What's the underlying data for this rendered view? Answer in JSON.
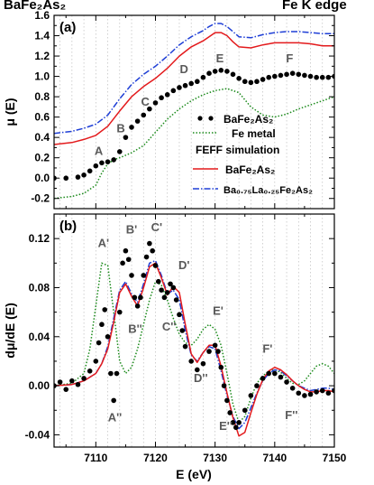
{
  "header": {
    "left_title": "BaFe₂As₂",
    "right_title": "Fe K edge"
  },
  "chart_data": [
    {
      "type": "line",
      "panel_label": "(a)",
      "xlabel": "",
      "ylabel": "μ (E)",
      "xlim": [
        7103,
        7150
      ],
      "ylim": [
        -0.3,
        1.6
      ],
      "xticks": [
        7110,
        7120,
        7130,
        7140,
        7150
      ],
      "yticks": [
        -0.2,
        0.0,
        0.2,
        0.4,
        0.6,
        0.8,
        1.0,
        1.2,
        1.4,
        1.6
      ],
      "ytick_labels": [
        "-0.2",
        "0.0",
        "0.2",
        "0.4",
        "0.6",
        "0.8",
        "1.0",
        "1.2",
        "1.4",
        "1.6"
      ],
      "grid": "vertical dotted",
      "annotations": [
        {
          "text": "A",
          "x": 7110.5,
          "y": 0.23
        },
        {
          "text": "B",
          "x": 7114.2,
          "y": 0.45
        },
        {
          "text": "C",
          "x": 7118.3,
          "y": 0.71
        },
        {
          "text": "D",
          "x": 7124.8,
          "y": 1.03
        },
        {
          "text": "E",
          "x": 7130.8,
          "y": 1.14
        },
        {
          "text": "F",
          "x": 7142.5,
          "y": 1.14
        }
      ],
      "legend": {
        "placement": "lower-right",
        "entries": [
          {
            "label": "BaFe₂As₂",
            "style": "dots",
            "color": "#000000"
          },
          {
            "label": "Fe metal",
            "style": "dotted",
            "color": "#1a8a1a"
          },
          {
            "label": "FEFF simulation",
            "style": "heading",
            "color": "#000000"
          },
          {
            "label": "BaFe₂As₂",
            "style": "solid",
            "color": "#e31a1c"
          },
          {
            "label": "Ba₀.₇₅La₀.₂₅Fe₂As₂",
            "style": "dashdot",
            "color": "#1f3fd6"
          }
        ]
      },
      "series": [
        {
          "name": "Ba0.75La0.25Fe2As2",
          "color": "#1f3fd6",
          "style": "dashdot",
          "x": [
            7103,
            7106,
            7108,
            7110,
            7112,
            7114,
            7116,
            7118,
            7120,
            7122,
            7124,
            7126,
            7128,
            7129,
            7130,
            7131,
            7132,
            7133,
            7134,
            7136,
            7138,
            7140,
            7142,
            7144,
            7146,
            7148,
            7150
          ],
          "y": [
            0.44,
            0.46,
            0.49,
            0.53,
            0.62,
            0.78,
            0.92,
            1.02,
            1.1,
            1.2,
            1.31,
            1.39,
            1.45,
            1.49,
            1.52,
            1.52,
            1.49,
            1.44,
            1.39,
            1.38,
            1.41,
            1.43,
            1.44,
            1.44,
            1.43,
            1.42,
            1.42
          ]
        },
        {
          "name": "BaFe2As2 (FEFF)",
          "color": "#e31a1c",
          "style": "solid",
          "x": [
            7103,
            7106,
            7108,
            7110,
            7112,
            7114,
            7116,
            7118,
            7120,
            7122,
            7124,
            7126,
            7128,
            7129,
            7130,
            7131,
            7132,
            7133,
            7134,
            7136,
            7138,
            7140,
            7142,
            7144,
            7146,
            7148,
            7150
          ],
          "y": [
            0.33,
            0.35,
            0.38,
            0.42,
            0.51,
            0.66,
            0.8,
            0.9,
            0.98,
            1.08,
            1.2,
            1.29,
            1.35,
            1.39,
            1.43,
            1.43,
            1.4,
            1.34,
            1.29,
            1.28,
            1.31,
            1.33,
            1.33,
            1.33,
            1.32,
            1.3,
            1.3
          ]
        },
        {
          "name": "Fe metal",
          "color": "#1a8a1a",
          "style": "dotted",
          "x": [
            7103,
            7106,
            7108,
            7110,
            7111,
            7112,
            7113,
            7114,
            7116,
            7118,
            7120,
            7122,
            7124,
            7126,
            7128,
            7130,
            7132,
            7134,
            7136,
            7138,
            7140,
            7142,
            7144,
            7146,
            7148,
            7150
          ],
          "y": [
            -0.2,
            -0.18,
            -0.15,
            -0.07,
            0.05,
            0.14,
            0.18,
            0.2,
            0.25,
            0.32,
            0.45,
            0.58,
            0.68,
            0.76,
            0.82,
            0.86,
            0.88,
            0.84,
            0.7,
            0.62,
            0.6,
            0.63,
            0.68,
            0.72,
            0.76,
            0.8
          ]
        },
        {
          "name": "BaFe2As2",
          "color": "#000000",
          "style": "dots",
          "x": [
            7103,
            7105,
            7107,
            7108,
            7109,
            7110,
            7111,
            7112,
            7113,
            7114,
            7115,
            7116,
            7117,
            7118,
            7119,
            7120,
            7121,
            7122,
            7123,
            7124,
            7125,
            7126,
            7127,
            7128,
            7129,
            7130,
            7131,
            7132,
            7133,
            7134,
            7135,
            7136,
            7137,
            7138,
            7139,
            7140,
            7141,
            7142,
            7143,
            7144,
            7145,
            7146,
            7147,
            7148,
            7149,
            7150
          ],
          "y": [
            0.0,
            0.0,
            0.01,
            0.03,
            0.07,
            0.12,
            0.15,
            0.16,
            0.18,
            0.26,
            0.4,
            0.5,
            0.56,
            0.62,
            0.68,
            0.74,
            0.79,
            0.82,
            0.86,
            0.89,
            0.91,
            0.93,
            0.95,
            0.99,
            1.03,
            1.05,
            1.06,
            1.05,
            1.02,
            0.98,
            0.95,
            0.94,
            0.95,
            0.97,
            0.99,
            1.0,
            1.01,
            1.02,
            1.03,
            1.02,
            1.01,
            1.0,
            0.99,
            0.99,
            0.99,
            1.0
          ]
        }
      ]
    },
    {
      "type": "line",
      "panel_label": "(b)",
      "xlabel": "E (eV)",
      "ylabel": "dμ/dE (E)",
      "xlim": [
        7103,
        7150
      ],
      "ylim": [
        -0.05,
        0.14
      ],
      "xticks": [
        7110,
        7120,
        7130,
        7140,
        7150
      ],
      "yticks": [
        -0.04,
        0.0,
        0.04,
        0.08,
        0.12
      ],
      "ytick_labels": [
        "-0.04",
        "0.00",
        "0.04",
        "0.08",
        "0.12"
      ],
      "grid": "vertical dotted",
      "annotations": [
        {
          "text": "A'",
          "x": 7111.3,
          "y": 0.113
        },
        {
          "text": "B'",
          "x": 7116.0,
          "y": 0.124
        },
        {
          "text": "C'",
          "x": 7120.2,
          "y": 0.126
        },
        {
          "text": "D'",
          "x": 7124.8,
          "y": 0.095
        },
        {
          "text": "E'",
          "x": 7130.5,
          "y": 0.058
        },
        {
          "text": "F'",
          "x": 7138.8,
          "y": 0.027
        },
        {
          "text": "A''",
          "x": 7113.2,
          "y": -0.029
        },
        {
          "text": "B''",
          "x": 7116.6,
          "y": 0.043
        },
        {
          "text": "C''",
          "x": 7122.3,
          "y": 0.045
        },
        {
          "text": "D''",
          "x": 7127.6,
          "y": 0.003
        },
        {
          "text": "E''",
          "x": 7131.8,
          "y": -0.036
        },
        {
          "text": "F''",
          "x": 7142.8,
          "y": -0.027
        }
      ],
      "series": [
        {
          "name": "Fe metal",
          "color": "#1a8a1a",
          "style": "dotted",
          "x": [
            7103,
            7106,
            7108,
            7109,
            7110,
            7111,
            7112,
            7113,
            7114,
            7115,
            7116,
            7117,
            7118,
            7119,
            7120,
            7121,
            7122,
            7123,
            7124,
            7125,
            7126,
            7127,
            7128,
            7129,
            7130,
            7131,
            7132,
            7133,
            7134,
            7135,
            7136,
            7137,
            7138,
            7139,
            7140,
            7141,
            7142,
            7143,
            7144,
            7145,
            7146,
            7147,
            7148,
            7149,
            7150
          ],
          "y": [
            0.0,
            0.002,
            0.01,
            0.03,
            0.065,
            0.1,
            0.098,
            0.06,
            0.02,
            0.01,
            0.015,
            0.03,
            0.05,
            0.07,
            0.085,
            0.082,
            0.07,
            0.055,
            0.042,
            0.035,
            0.033,
            0.038,
            0.046,
            0.05,
            0.046,
            0.033,
            0.01,
            -0.015,
            -0.03,
            -0.025,
            -0.01,
            0.002,
            0.008,
            0.012,
            0.013,
            0.011,
            0.006,
            0.002,
            0.001,
            0.004,
            0.01,
            0.016,
            0.018,
            0.016,
            0.01
          ]
        },
        {
          "name": "Ba0.75La0.25Fe2As2",
          "color": "#1f3fd6",
          "style": "dashdot",
          "x": [
            7103,
            7106,
            7108,
            7110,
            7111,
            7112,
            7113,
            7114,
            7115,
            7116,
            7117,
            7118,
            7119,
            7120,
            7121,
            7122,
            7123,
            7124,
            7125,
            7126,
            7127,
            7128,
            7129,
            7130,
            7131,
            7132,
            7133,
            7134,
            7135,
            7136,
            7137,
            7138,
            7139,
            7140,
            7141,
            7142,
            7143,
            7144,
            7145,
            7146,
            7147,
            7148,
            7149,
            7150
          ],
          "y": [
            0.0,
            0.001,
            0.004,
            0.01,
            0.018,
            0.032,
            0.055,
            0.078,
            0.085,
            0.075,
            0.068,
            0.083,
            0.1,
            0.102,
            0.09,
            0.075,
            0.078,
            0.07,
            0.045,
            0.025,
            0.02,
            0.027,
            0.032,
            0.03,
            0.012,
            -0.008,
            -0.025,
            -0.035,
            -0.03,
            -0.018,
            -0.006,
            0.004,
            0.01,
            0.013,
            0.012,
            0.008,
            0.004,
            0.0,
            -0.002,
            -0.004,
            -0.003,
            -0.002,
            -0.002,
            -0.003
          ]
        },
        {
          "name": "BaFe2As2 (FEFF)",
          "color": "#e31a1c",
          "style": "solid",
          "x": [
            7103,
            7106,
            7108,
            7110,
            7111,
            7112,
            7113,
            7114,
            7115,
            7116,
            7117,
            7118,
            7119,
            7120,
            7121,
            7122,
            7123,
            7124,
            7125,
            7126,
            7127,
            7128,
            7129,
            7130,
            7131,
            7132,
            7133,
            7134,
            7135,
            7136,
            7137,
            7138,
            7139,
            7140,
            7141,
            7142,
            7143,
            7144,
            7145,
            7146,
            7147,
            7148,
            7149,
            7150
          ],
          "y": [
            0.0,
            0.001,
            0.004,
            0.01,
            0.018,
            0.03,
            0.052,
            0.076,
            0.083,
            0.073,
            0.065,
            0.08,
            0.097,
            0.1,
            0.088,
            0.074,
            0.081,
            0.076,
            0.05,
            0.026,
            0.019,
            0.027,
            0.033,
            0.033,
            0.016,
            -0.006,
            -0.026,
            -0.041,
            -0.038,
            -0.022,
            -0.007,
            0.005,
            0.012,
            0.015,
            0.013,
            0.009,
            0.004,
            0.0,
            -0.003,
            -0.005,
            -0.005,
            -0.004,
            -0.004,
            -0.005
          ]
        },
        {
          "name": "BaFe2As2",
          "color": "#000000",
          "style": "dots",
          "x": [
            7103,
            7104,
            7105,
            7106,
            7107,
            7108,
            7109,
            7110,
            7110.5,
            7111,
            7111.5,
            7112,
            7112.5,
            7113,
            7113.5,
            7114,
            7114.5,
            7115,
            7115.5,
            7116,
            7116.5,
            7117,
            7117.5,
            7118,
            7118.5,
            7119,
            7119.5,
            7120,
            7120.5,
            7121,
            7121.5,
            7122,
            7122.5,
            7123,
            7123.5,
            7124,
            7124.5,
            7125,
            7126,
            7127,
            7128,
            7129,
            7130,
            7130.5,
            7131,
            7131.5,
            7132,
            7132.5,
            7133,
            7133.5,
            7134,
            7135,
            7136,
            7137,
            7138,
            7139,
            7140,
            7141,
            7142,
            7143,
            7144,
            7145,
            7146,
            7147,
            7148,
            7149,
            7150
          ],
          "y": [
            0.0,
            0.003,
            -0.003,
            0.004,
            0.001,
            0.006,
            0.012,
            0.02,
            0.035,
            0.05,
            0.062,
            0.04,
            0.01,
            -0.012,
            0.01,
            0.06,
            0.1,
            0.11,
            0.103,
            0.09,
            0.072,
            0.065,
            0.072,
            0.09,
            0.105,
            0.116,
            0.11,
            0.098,
            0.085,
            0.078,
            0.072,
            0.076,
            0.083,
            0.08,
            0.07,
            0.058,
            0.045,
            0.032,
            0.02,
            0.013,
            0.018,
            0.028,
            0.033,
            0.028,
            0.015,
            0.0,
            -0.012,
            -0.022,
            -0.03,
            -0.034,
            -0.03,
            -0.02,
            -0.008,
            0.0,
            0.006,
            0.01,
            0.01,
            0.007,
            0.003,
            -0.002,
            -0.006,
            -0.008,
            -0.007,
            -0.005,
            -0.004,
            -0.006,
            -0.004
          ]
        }
      ]
    }
  ]
}
